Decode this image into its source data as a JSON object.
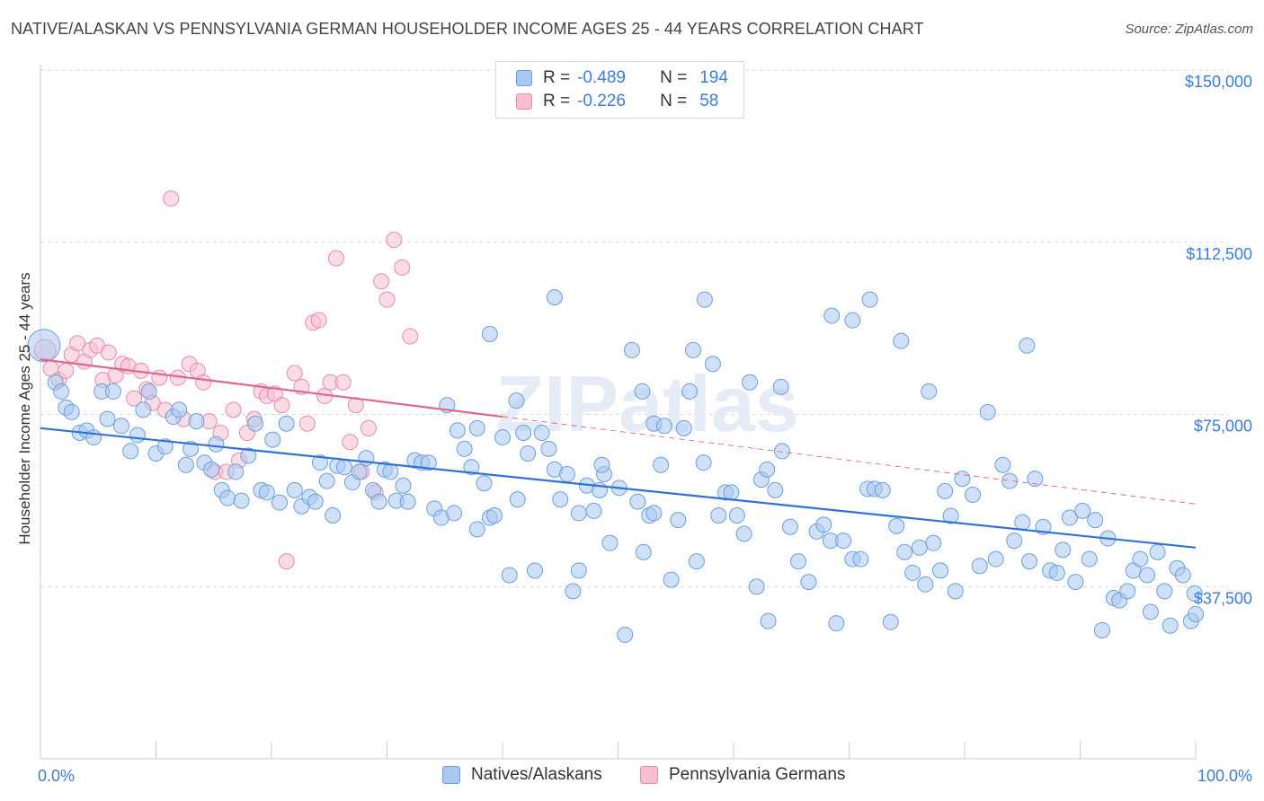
{
  "header": {
    "title": "NATIVE/ALASKAN VS PENNSYLVANIA GERMAN HOUSEHOLDER INCOME AGES 25 - 44 YEARS CORRELATION CHART",
    "source": "Source: ZipAtlas.com"
  },
  "legend": {
    "rows": [
      {
        "r_label": "R =",
        "r_value": "-0.489",
        "n_label": "N =",
        "n_value": "194"
      },
      {
        "r_label": "R =",
        "r_value": "-0.226",
        "n_label": "N =",
        "n_value": "58"
      }
    ]
  },
  "bottom_legend": {
    "series1": "Natives/Alaskans",
    "series2": "Pennsylvania Germans"
  },
  "watermark": "ZIPatlas",
  "colors": {
    "blue_fill": "#a9c8f0",
    "blue_stroke": "#6a9fe0",
    "blue_line": "#2f72d6",
    "pink_fill": "#f6bfd0",
    "pink_stroke": "#e98aab",
    "pink_line": "#e0668e",
    "tick_text": "#3b7dd8",
    "grid": "#d8d8d8"
  },
  "chart_data": {
    "type": "scatter",
    "title": "NATIVE/ALASKAN VS PENNSYLVANIA GERMAN HOUSEHOLDER INCOME AGES 25 - 44 YEARS CORRELATION CHART",
    "xlabel": "",
    "ylabel": "Householder Income Ages 25 - 44 years",
    "xlim": [
      0,
      100
    ],
    "ylim": [
      0,
      155000
    ],
    "x_tick_labels": [
      "0.0%",
      "100.0%"
    ],
    "y_ticks": [
      37500,
      75000,
      112500,
      150000
    ],
    "y_tick_labels": [
      "$37,500",
      "$75,000",
      "$112,500",
      "$150,000"
    ],
    "grid": "horizontal dashed",
    "legend_position": "top-center",
    "series": [
      {
        "name": "Natives/Alaskans",
        "color": "#a9c8f0",
        "trend": {
          "x": [
            0,
            100
          ],
          "y": [
            72000,
            46000
          ],
          "style": "solid"
        },
        "points": [
          [
            0.3,
            90000
          ],
          [
            1.3,
            82000
          ],
          [
            1.8,
            80000
          ],
          [
            2.2,
            76500
          ],
          [
            2.7,
            75500
          ],
          [
            3.4,
            71000
          ],
          [
            4.0,
            71500
          ],
          [
            4.6,
            70000
          ],
          [
            5.3,
            80000
          ],
          [
            5.8,
            74000
          ],
          [
            6.3,
            80000
          ],
          [
            7.0,
            72500
          ],
          [
            7.8,
            67000
          ],
          [
            8.4,
            70500
          ],
          [
            8.9,
            76000
          ],
          [
            9.4,
            80000
          ],
          [
            10.0,
            66500
          ],
          [
            10.8,
            68000
          ],
          [
            11.5,
            74500
          ],
          [
            12.0,
            76000
          ],
          [
            12.6,
            64000
          ],
          [
            13.0,
            67500
          ],
          [
            13.5,
            73500
          ],
          [
            14.2,
            64500
          ],
          [
            14.8,
            63000
          ],
          [
            15.2,
            68500
          ],
          [
            15.7,
            58500
          ],
          [
            16.2,
            56800
          ],
          [
            16.9,
            62500
          ],
          [
            17.4,
            56200
          ],
          [
            18.0,
            66000
          ],
          [
            18.6,
            73000
          ],
          [
            19.1,
            58500
          ],
          [
            19.6,
            58000
          ],
          [
            20.1,
            69500
          ],
          [
            20.7,
            55800
          ],
          [
            21.3,
            73000
          ],
          [
            22.0,
            58500
          ],
          [
            22.6,
            55000
          ],
          [
            23.3,
            57000
          ],
          [
            23.8,
            56000
          ],
          [
            24.2,
            64500
          ],
          [
            24.8,
            60500
          ],
          [
            25.3,
            53000
          ],
          [
            25.7,
            63800
          ],
          [
            26.3,
            63500
          ],
          [
            27.0,
            60200
          ],
          [
            27.6,
            62500
          ],
          [
            28.2,
            65500
          ],
          [
            28.8,
            58500
          ],
          [
            29.3,
            56000
          ],
          [
            29.8,
            63000
          ],
          [
            30.3,
            62500
          ],
          [
            30.8,
            56200
          ],
          [
            31.4,
            59500
          ],
          [
            31.8,
            56000
          ],
          [
            32.4,
            65000
          ],
          [
            33.0,
            64500
          ],
          [
            33.6,
            64500
          ],
          [
            34.1,
            54500
          ],
          [
            34.7,
            52500
          ],
          [
            35.2,
            77000
          ],
          [
            35.8,
            53500
          ],
          [
            36.1,
            71500
          ],
          [
            36.7,
            67500
          ],
          [
            37.3,
            63500
          ],
          [
            37.8,
            50000
          ],
          [
            38.4,
            60000
          ],
          [
            38.9,
            52500
          ],
          [
            39.3,
            53000
          ],
          [
            40.0,
            70000
          ],
          [
            40.6,
            40000
          ],
          [
            41.2,
            78000
          ],
          [
            41.8,
            71000
          ],
          [
            42.2,
            66500
          ],
          [
            42.8,
            41000
          ],
          [
            43.4,
            71000
          ],
          [
            44.0,
            67500
          ],
          [
            44.5,
            63000
          ],
          [
            45.0,
            56500
          ],
          [
            45.6,
            62000
          ],
          [
            46.1,
            36500
          ],
          [
            46.6,
            53500
          ],
          [
            47.3,
            59500
          ],
          [
            47.9,
            54000
          ],
          [
            48.4,
            58500
          ],
          [
            48.8,
            62000
          ],
          [
            49.3,
            47000
          ],
          [
            50.1,
            59000
          ],
          [
            50.6,
            27000
          ],
          [
            51.2,
            89000
          ],
          [
            51.7,
            56000
          ],
          [
            52.2,
            45000
          ],
          [
            52.7,
            53000
          ],
          [
            53.1,
            73000
          ],
          [
            53.7,
            64000
          ],
          [
            54.0,
            72500
          ],
          [
            54.6,
            39000
          ],
          [
            55.2,
            52000
          ],
          [
            55.7,
            72000
          ],
          [
            56.2,
            80000
          ],
          [
            56.8,
            43000
          ],
          [
            57.4,
            64500
          ],
          [
            58.2,
            86000
          ],
          [
            58.7,
            53000
          ],
          [
            59.3,
            58000
          ],
          [
            59.8,
            58000
          ],
          [
            60.3,
            53000
          ],
          [
            60.9,
            49000
          ],
          [
            61.4,
            82000
          ],
          [
            62.0,
            37500
          ],
          [
            62.4,
            60800
          ],
          [
            63.0,
            30000
          ],
          [
            63.6,
            58500
          ],
          [
            64.2,
            67000
          ],
          [
            64.9,
            50500
          ],
          [
            65.6,
            43000
          ],
          [
            66.5,
            38500
          ],
          [
            67.2,
            49500
          ],
          [
            67.8,
            51000
          ],
          [
            68.4,
            47500
          ],
          [
            68.9,
            29500
          ],
          [
            69.5,
            47500
          ],
          [
            70.3,
            43500
          ],
          [
            71.0,
            43500
          ],
          [
            71.6,
            58800
          ],
          [
            72.2,
            58800
          ],
          [
            72.9,
            58500
          ],
          [
            73.6,
            29800
          ],
          [
            74.1,
            50700
          ],
          [
            74.8,
            45000
          ],
          [
            75.5,
            40500
          ],
          [
            76.1,
            46000
          ],
          [
            76.6,
            38000
          ],
          [
            77.3,
            47000
          ],
          [
            77.9,
            41000
          ],
          [
            78.3,
            58300
          ],
          [
            78.8,
            52900
          ],
          [
            79.2,
            36500
          ],
          [
            79.8,
            61000
          ],
          [
            80.7,
            57500
          ],
          [
            81.3,
            42000
          ],
          [
            82.0,
            75500
          ],
          [
            82.7,
            43500
          ],
          [
            83.3,
            64000
          ],
          [
            83.9,
            60500
          ],
          [
            84.3,
            47500
          ],
          [
            85.0,
            51500
          ],
          [
            85.6,
            43000
          ],
          [
            86.1,
            61000
          ],
          [
            86.8,
            50500
          ],
          [
            87.4,
            41000
          ],
          [
            88.0,
            40500
          ],
          [
            88.5,
            45500
          ],
          [
            89.1,
            52500
          ],
          [
            89.6,
            38500
          ],
          [
            90.2,
            54000
          ],
          [
            90.8,
            43500
          ],
          [
            91.3,
            52000
          ],
          [
            91.9,
            28000
          ],
          [
            92.4,
            48000
          ],
          [
            92.9,
            35000
          ],
          [
            93.4,
            34500
          ],
          [
            94.1,
            36500
          ],
          [
            94.6,
            41000
          ],
          [
            95.2,
            43500
          ],
          [
            95.8,
            40000
          ],
          [
            96.1,
            32000
          ],
          [
            96.7,
            45000
          ],
          [
            97.3,
            36500
          ],
          [
            97.8,
            29000
          ],
          [
            98.4,
            41500
          ],
          [
            98.9,
            40000
          ],
          [
            99.6,
            30000
          ],
          [
            99.9,
            36000
          ],
          [
            100.0,
            31500
          ],
          [
            44.5,
            100500
          ],
          [
            57.5,
            100000
          ],
          [
            68.5,
            96500
          ],
          [
            70.3,
            95500
          ],
          [
            71.8,
            100000
          ],
          [
            74.5,
            91000
          ],
          [
            85.4,
            90000
          ],
          [
            56.5,
            89000
          ],
          [
            38.9,
            92500
          ],
          [
            64.1,
            81000
          ],
          [
            52.1,
            80000
          ],
          [
            76.9,
            80000
          ],
          [
            37.8,
            72000
          ],
          [
            41.3,
            56500
          ],
          [
            48.6,
            64000
          ],
          [
            53.1,
            53500
          ],
          [
            46.6,
            41000
          ],
          [
            62.9,
            63000
          ]
        ]
      },
      {
        "name": "Pennsylvania Germans",
        "color": "#f6bfd0",
        "trend": {
          "x": [
            0,
            40
          ],
          "y": [
            87000,
            74500
          ],
          "style": "solid",
          "extended": {
            "x": [
              40,
              100
            ],
            "y": [
              74500,
              55500
            ],
            "style": "dashed"
          }
        },
        "points": [
          [
            0.4,
            89000
          ],
          [
            0.9,
            85000
          ],
          [
            1.6,
            82500
          ],
          [
            2.2,
            84500
          ],
          [
            2.7,
            88000
          ],
          [
            3.2,
            90500
          ],
          [
            3.8,
            86500
          ],
          [
            4.3,
            89000
          ],
          [
            4.9,
            90000
          ],
          [
            5.4,
            82500
          ],
          [
            5.9,
            88500
          ],
          [
            6.5,
            83500
          ],
          [
            7.1,
            86000
          ],
          [
            7.6,
            85500
          ],
          [
            8.1,
            78500
          ],
          [
            8.7,
            84500
          ],
          [
            9.2,
            80500
          ],
          [
            9.7,
            77500
          ],
          [
            10.3,
            83000
          ],
          [
            10.8,
            76000
          ],
          [
            11.3,
            122000
          ],
          [
            11.9,
            83000
          ],
          [
            12.4,
            74000
          ],
          [
            12.9,
            86000
          ],
          [
            13.6,
            84500
          ],
          [
            14.1,
            82000
          ],
          [
            14.6,
            73500
          ],
          [
            15.1,
            62500
          ],
          [
            15.6,
            71000
          ],
          [
            16.1,
            62500
          ],
          [
            16.7,
            76000
          ],
          [
            17.2,
            65000
          ],
          [
            17.9,
            71000
          ],
          [
            18.5,
            74000
          ],
          [
            19.1,
            80000
          ],
          [
            19.6,
            79000
          ],
          [
            20.3,
            79500
          ],
          [
            20.9,
            77000
          ],
          [
            21.3,
            43000
          ],
          [
            22.0,
            84000
          ],
          [
            22.6,
            81000
          ],
          [
            23.1,
            73000
          ],
          [
            23.6,
            95000
          ],
          [
            24.1,
            95500
          ],
          [
            24.6,
            79000
          ],
          [
            25.1,
            82000
          ],
          [
            25.6,
            109000
          ],
          [
            26.2,
            82000
          ],
          [
            26.8,
            69000
          ],
          [
            27.3,
            77000
          ],
          [
            27.8,
            62500
          ],
          [
            28.4,
            72000
          ],
          [
            29.0,
            58000
          ],
          [
            29.5,
            104000
          ],
          [
            30.0,
            100000
          ],
          [
            30.6,
            113000
          ],
          [
            31.3,
            107000
          ],
          [
            32.0,
            92000
          ]
        ]
      }
    ]
  }
}
